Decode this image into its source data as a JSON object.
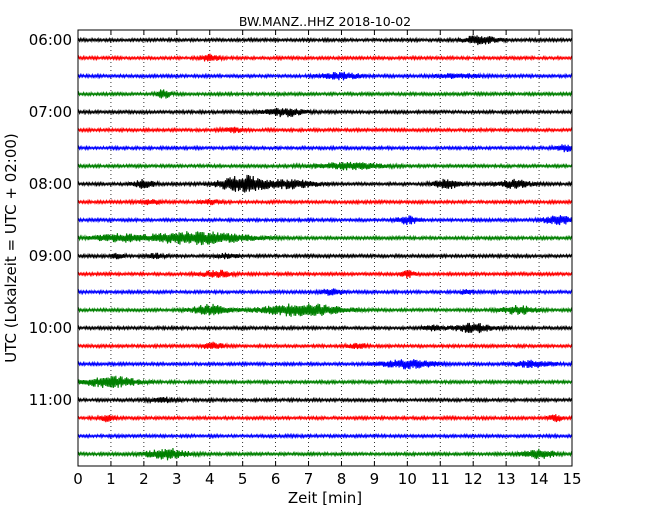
{
  "chart_data": {
    "type": "line",
    "title": "BW.MANZ..HHZ 2018-10-02",
    "xlabel": "Zeit  [min]",
    "ylabel": "UTC (Lokalzeit = UTC + 02:00)",
    "xlim": [
      0,
      15
    ],
    "x_ticks": [
      "0",
      "1",
      "2",
      "3",
      "4",
      "5",
      "6",
      "7",
      "8",
      "9",
      "10",
      "11",
      "12",
      "13",
      "14",
      "15"
    ],
    "y_ticks": [
      "06:00",
      "07:00",
      "08:00",
      "09:00",
      "10:00",
      "11:00"
    ],
    "y_tick_rows": [
      0,
      4,
      8,
      12,
      16,
      20
    ],
    "x_grid": "dotted",
    "colors": [
      "#000000",
      "#ff0000",
      "#0000ff",
      "#008000"
    ],
    "traces": [
      {
        "start": "06:00",
        "bursts": [
          [
            12.2,
            0.5,
            4
          ]
        ]
      },
      {
        "start": "06:15",
        "bursts": [
          [
            4.0,
            0.3,
            3
          ]
        ]
      },
      {
        "start": "06:30",
        "bursts": [
          [
            8.0,
            0.6,
            3
          ],
          [
            11.5,
            0.6,
            2
          ]
        ]
      },
      {
        "start": "06:45",
        "bursts": [
          [
            2.6,
            0.2,
            4
          ]
        ]
      },
      {
        "start": "07:00",
        "bursts": [
          [
            6.3,
            0.6,
            4
          ]
        ]
      },
      {
        "start": "07:15",
        "bursts": [
          [
            4.7,
            0.3,
            2
          ]
        ]
      },
      {
        "start": "07:30",
        "bursts": [
          [
            14.8,
            0.3,
            3
          ]
        ]
      },
      {
        "start": "07:45",
        "bursts": [
          [
            8.2,
            1.0,
            3
          ]
        ]
      },
      {
        "start": "08:00",
        "bursts": [
          [
            2.0,
            0.3,
            4
          ],
          [
            5.0,
            0.7,
            8
          ],
          [
            6.5,
            0.7,
            4
          ],
          [
            11.2,
            0.4,
            4
          ],
          [
            13.2,
            0.5,
            4
          ]
        ]
      },
      {
        "start": "08:15",
        "bursts": [
          [
            2.2,
            0.3,
            2
          ],
          [
            4.0,
            0.3,
            2
          ]
        ]
      },
      {
        "start": "08:30",
        "bursts": [
          [
            10.0,
            0.3,
            4
          ],
          [
            14.6,
            0.5,
            4
          ]
        ]
      },
      {
        "start": "08:45",
        "bursts": [
          [
            1.2,
            0.7,
            3
          ],
          [
            3.6,
            1.5,
            6
          ]
        ]
      },
      {
        "start": "09:00",
        "bursts": [
          [
            1.2,
            0.2,
            2
          ],
          [
            2.4,
            0.3,
            2
          ],
          [
            4.5,
            0.3,
            2
          ]
        ]
      },
      {
        "start": "09:15",
        "bursts": [
          [
            4.2,
            0.5,
            3
          ],
          [
            10.0,
            0.2,
            3
          ]
        ]
      },
      {
        "start": "09:30",
        "bursts": [
          [
            7.7,
            0.3,
            3
          ],
          [
            11.8,
            0.2,
            2
          ]
        ]
      },
      {
        "start": "09:45",
        "bursts": [
          [
            4.0,
            0.5,
            5
          ],
          [
            6.8,
            1.2,
            6
          ],
          [
            13.4,
            0.5,
            4
          ]
        ]
      },
      {
        "start": "10:00",
        "bursts": [
          [
            12.0,
            0.6,
            4
          ],
          [
            10.8,
            0.3,
            2
          ]
        ]
      },
      {
        "start": "10:15",
        "bursts": [
          [
            4.1,
            0.3,
            3
          ],
          [
            8.5,
            0.3,
            2
          ]
        ]
      },
      {
        "start": "10:30",
        "bursts": [
          [
            10.0,
            0.8,
            4
          ],
          [
            13.8,
            0.6,
            3
          ]
        ]
      },
      {
        "start": "10:45",
        "bursts": [
          [
            1.0,
            0.8,
            5
          ]
        ]
      },
      {
        "start": "11:00",
        "bursts": [
          [
            2.6,
            0.4,
            2
          ]
        ]
      },
      {
        "start": "11:15",
        "bursts": [
          [
            0.9,
            0.2,
            3
          ],
          [
            14.5,
            0.2,
            3
          ]
        ]
      },
      {
        "start": "11:30",
        "bursts": []
      },
      {
        "start": "11:45",
        "bursts": [
          [
            2.7,
            0.6,
            5
          ],
          [
            14.0,
            0.5,
            4
          ]
        ]
      }
    ]
  }
}
